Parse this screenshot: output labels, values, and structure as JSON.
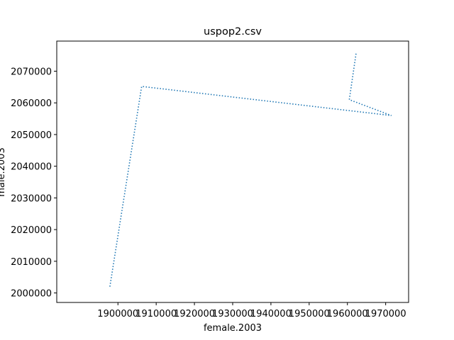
{
  "chart_data": {
    "type": "line",
    "title": "uspop2.csv",
    "xlabel": "female.2003",
    "ylabel": "male.2003",
    "line_style": "dotted",
    "color": "#1f77b4",
    "grid": false,
    "xlim": [
      1884000,
      1976000
    ],
    "ylim": [
      1997000,
      2079500
    ],
    "xticks": [
      1900000,
      1910000,
      1920000,
      1930000,
      1940000,
      1950000,
      1960000,
      1970000
    ],
    "xtick_labels": [
      "1900000",
      "1910000",
      "1920000",
      "1930000",
      "1940000",
      "1950000",
      "1960000",
      "1970000"
    ],
    "yticks": [
      2000000,
      2010000,
      2020000,
      2030000,
      2040000,
      2050000,
      2060000,
      2070000
    ],
    "ytick_labels": [
      "2000000",
      "2010000",
      "2020000",
      "2030000",
      "2040000",
      "2050000",
      "2060000",
      "2070000"
    ],
    "series": [
      {
        "x": [
          1897900,
          1906200,
          1971500,
          1960500,
          1962300
        ],
        "y": [
          2002000,
          2065200,
          2056000,
          2061000,
          2075800
        ]
      }
    ]
  }
}
